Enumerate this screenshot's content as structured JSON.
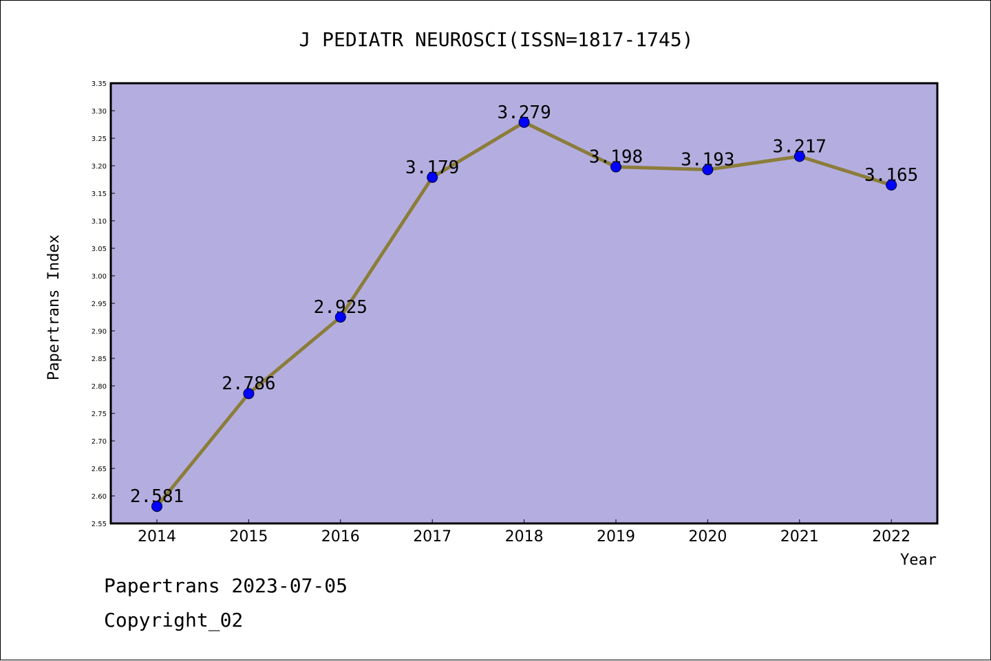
{
  "chart_data": {
    "type": "line",
    "title": "J PEDIATR NEUROSCI(ISSN=1817-1745)",
    "xlabel": "Year",
    "ylabel": "Papertrans Index",
    "categories": [
      "2014",
      "2015",
      "2016",
      "2017",
      "2018",
      "2019",
      "2020",
      "2021",
      "2022"
    ],
    "series": [
      {
        "values": [
          2.581,
          2.786,
          2.925,
          3.179,
          3.279,
          3.198,
          3.193,
          3.217,
          3.165
        ]
      }
    ],
    "data_labels": [
      "2.581",
      "2.786",
      "2.925",
      "3.179",
      "3.279",
      "3.198",
      "3.193",
      "3.217",
      "3.165"
    ],
    "ylim": [
      2.55,
      3.35
    ],
    "yticks": [
      "2.55",
      "2.60",
      "2.65",
      "2.70",
      "2.75",
      "2.80",
      "2.85",
      "2.90",
      "2.95",
      "3.00",
      "3.05",
      "3.10",
      "3.15",
      "3.20",
      "3.25",
      "3.30",
      "3.35"
    ],
    "grid": false,
    "colors": {
      "plot_bg": "#b4aee0",
      "line": "#8b7d3a",
      "marker": "#0000ff"
    }
  },
  "footer": {
    "source_line": "Papertrans 2023-07-05",
    "copyright_line": "Copyright_02"
  }
}
